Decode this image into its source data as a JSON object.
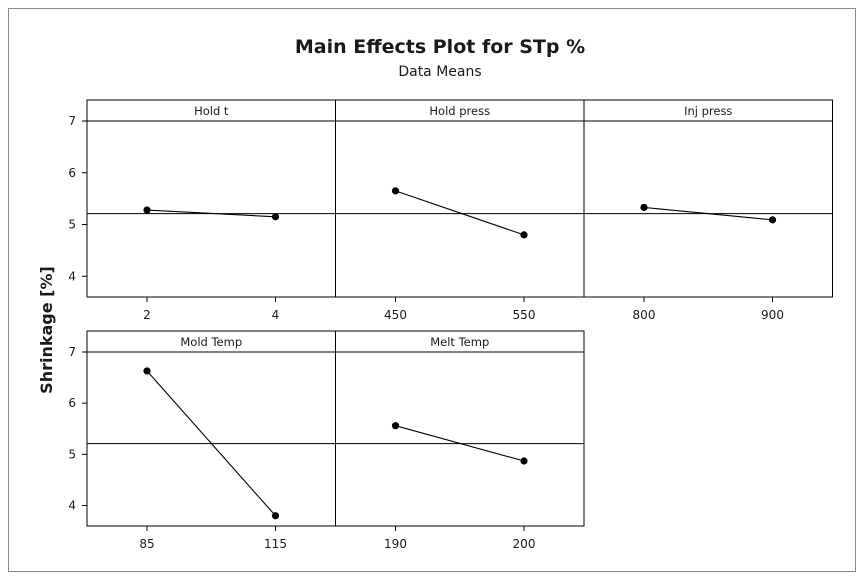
{
  "chart_data": {
    "type": "line",
    "title": "Main Effects Plot for STp %",
    "subtitle": "Data Means",
    "ylabel": "Shrinkage [%]",
    "ylim": [
      3.6,
      7.0
    ],
    "y_ticks": [
      4,
      5,
      6,
      7
    ],
    "reference_line": 5.21,
    "grid": false,
    "panels": [
      {
        "name": "Hold t",
        "categories": [
          "2",
          "4"
        ],
        "values": [
          5.28,
          5.15
        ]
      },
      {
        "name": "Hold press",
        "categories": [
          "450",
          "550"
        ],
        "values": [
          5.65,
          4.8
        ]
      },
      {
        "name": "Inj press",
        "categories": [
          "800",
          "900"
        ],
        "values": [
          5.33,
          5.09
        ]
      },
      {
        "name": "Mold Temp",
        "categories": [
          "85",
          "115"
        ],
        "values": [
          6.63,
          3.8
        ]
      },
      {
        "name": "Melt Temp",
        "categories": [
          "190",
          "200"
        ],
        "values": [
          5.56,
          4.87
        ]
      }
    ]
  }
}
